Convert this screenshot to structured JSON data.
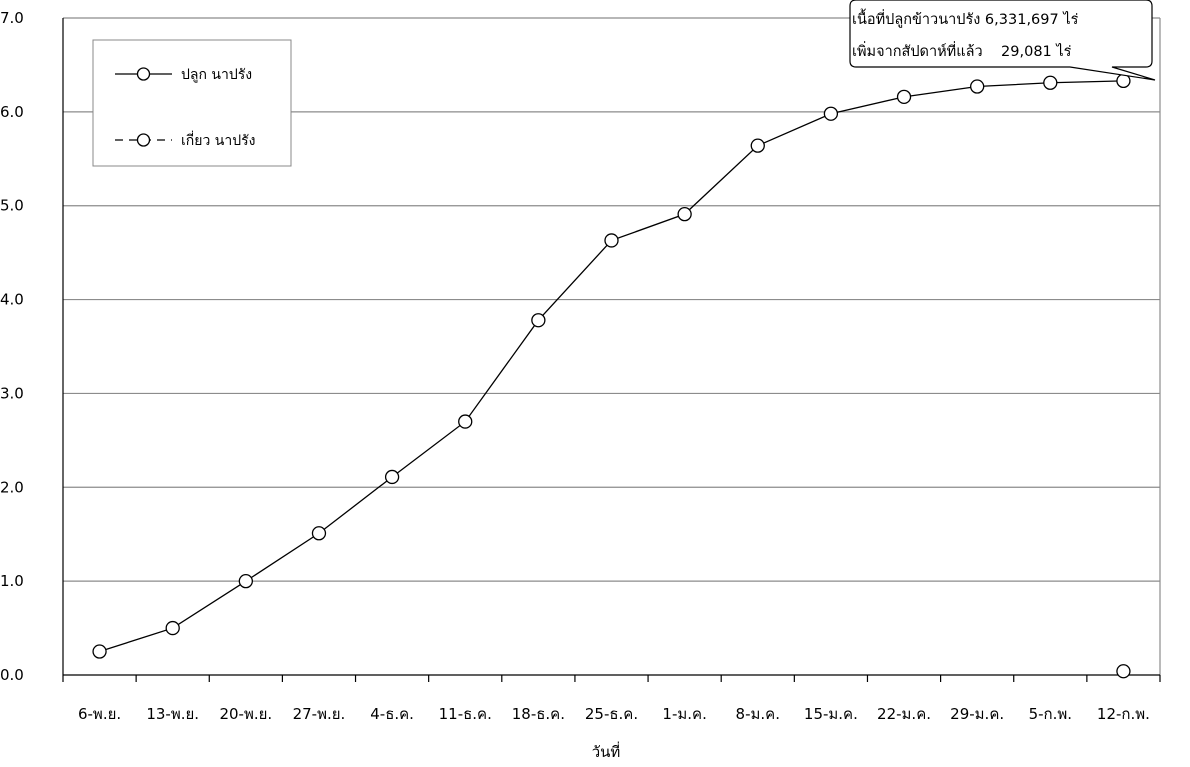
{
  "chart_data": {
    "type": "line",
    "title": "",
    "xlabel": "วันที่",
    "ylabel": "",
    "ylim": [
      0,
      7
    ],
    "yticks": [
      "0.0",
      "1.0",
      "2.0",
      "3.0",
      "4.0",
      "5.0",
      "6.0",
      "7.0"
    ],
    "categories": [
      "6-พ.ย.",
      "13-พ.ย.",
      "20-พ.ย.",
      "27-พ.ย.",
      "4-ธ.ค.",
      "11-ธ.ค.",
      "18-ธ.ค.",
      "25-ธ.ค.",
      "1-ม.ค.",
      "8-ม.ค.",
      "15-ม.ค.",
      "22-ม.ค.",
      "29-ม.ค.",
      "5-ก.พ.",
      "12-ก.พ."
    ],
    "grid": true,
    "legend_position": "top-left",
    "series": [
      {
        "name": "ปลูก นาปรัง",
        "style": "solid",
        "marker": "open-circle",
        "color": "#000000",
        "values": [
          0.25,
          0.5,
          1.0,
          1.51,
          2.11,
          2.7,
          3.78,
          4.63,
          4.91,
          5.64,
          5.98,
          6.16,
          6.27,
          6.31,
          6.33
        ]
      },
      {
        "name": "เกี่ยว นาปรัง",
        "style": "dashed",
        "marker": "open-circle",
        "color": "#000000",
        "values": [
          null,
          null,
          null,
          null,
          null,
          null,
          null,
          null,
          null,
          null,
          null,
          null,
          null,
          null,
          0.04
        ]
      }
    ],
    "annotation": {
      "line1": "เนื้อที่ปลูกข้าวนาปรัง 6,331,697 ไร่",
      "line2": "เพิ่มจากสัปดาห์ที่แล้ว    29,081 ไร่"
    }
  }
}
